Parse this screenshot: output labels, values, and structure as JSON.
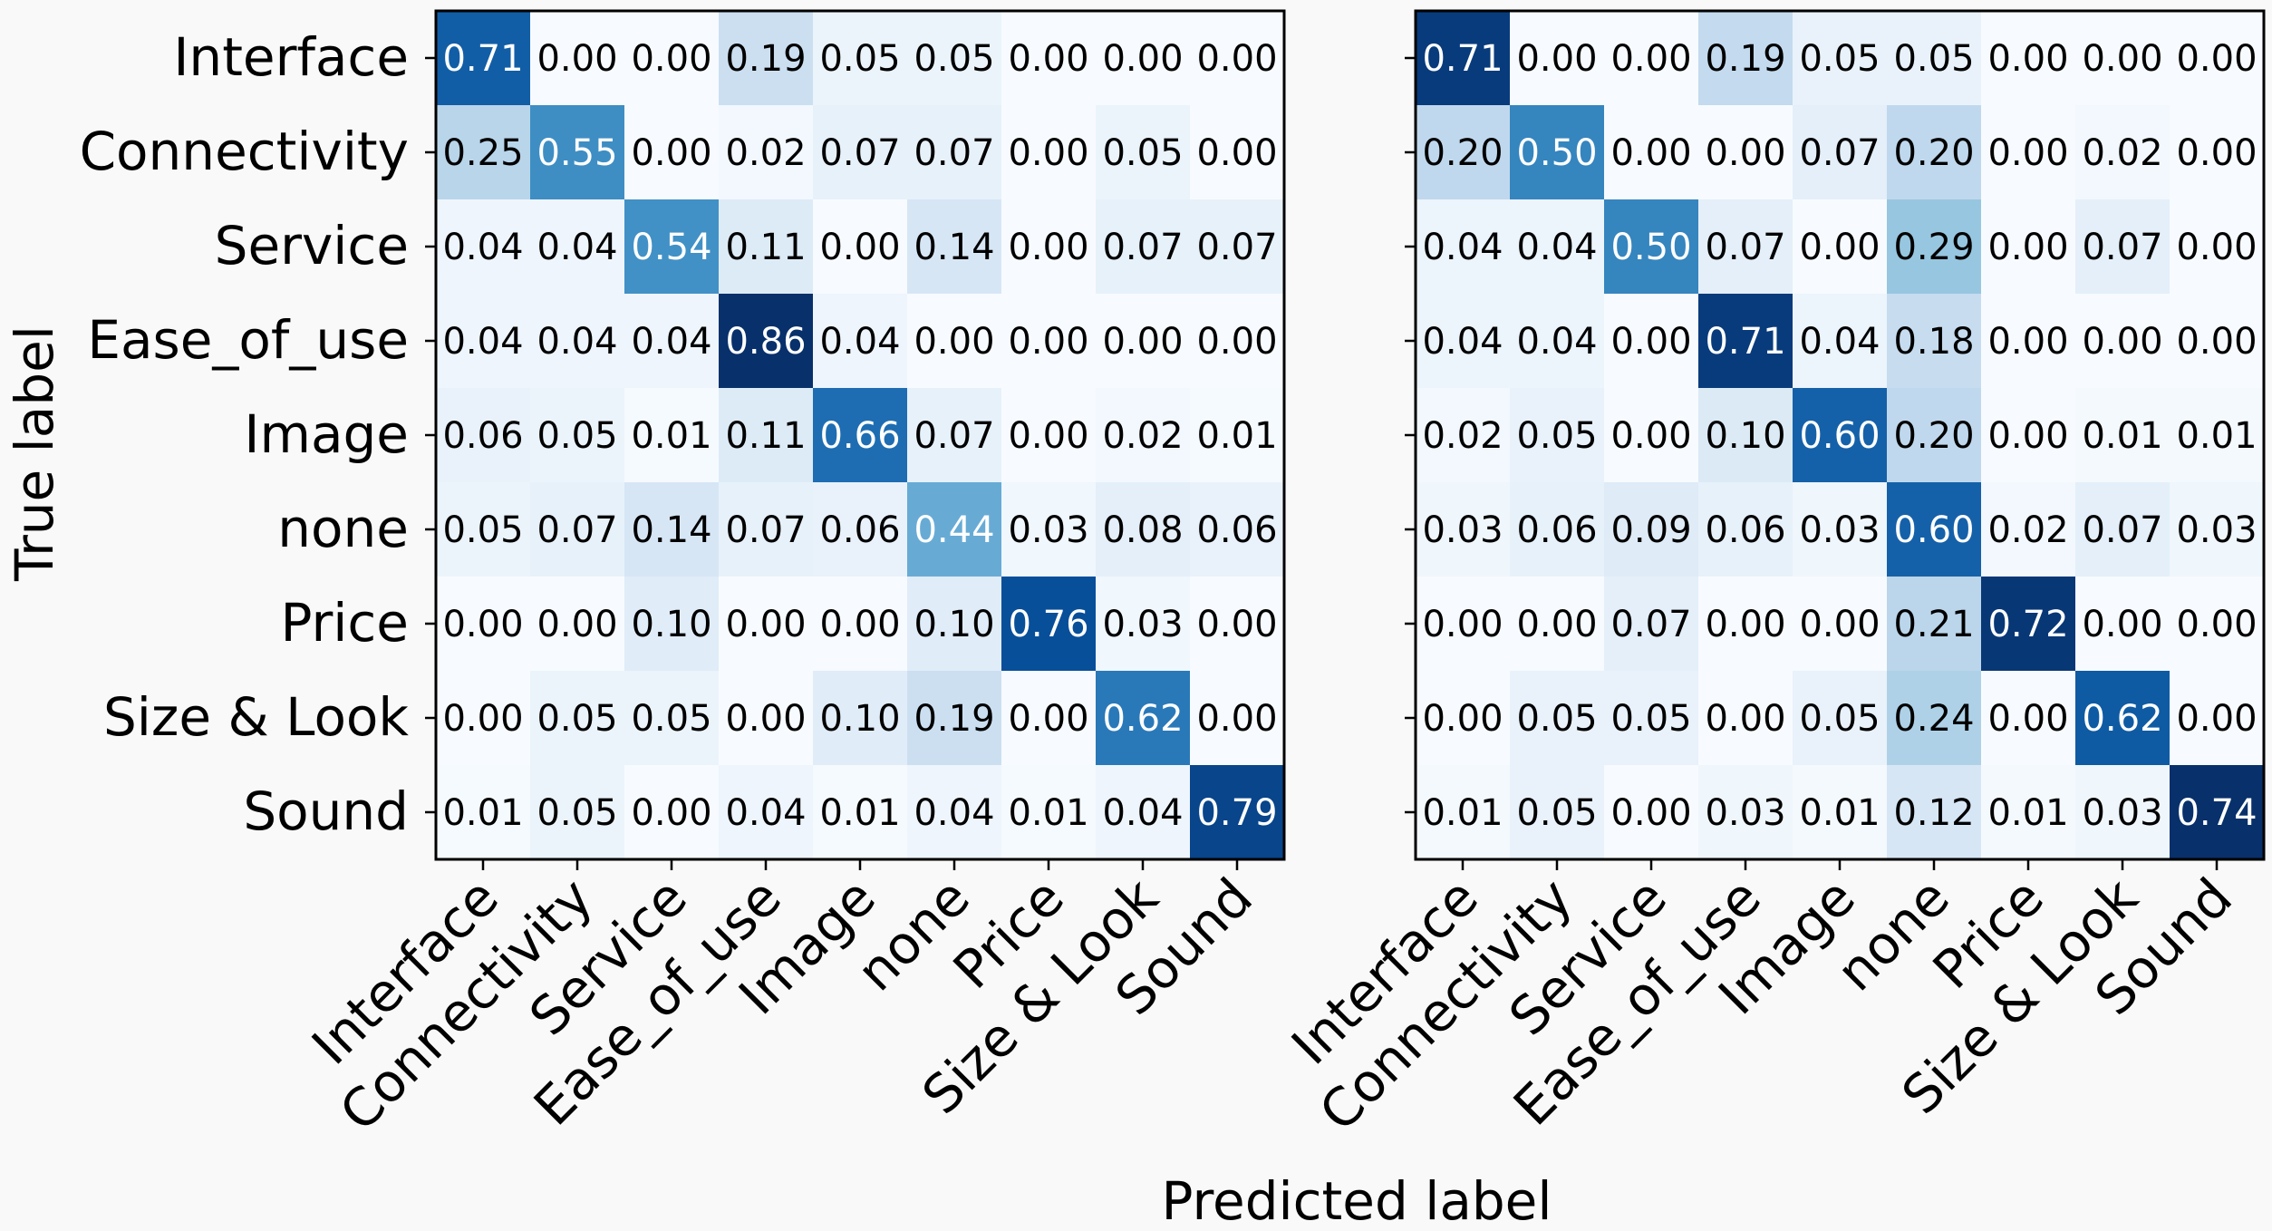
{
  "chart_data": [
    {
      "type": "heatmap",
      "title": "",
      "xlabel": "Predicted label",
      "ylabel": "True label",
      "x_categories": [
        "Interface",
        "Connectivity",
        "Service",
        "Ease_of_use",
        "Image",
        "none",
        "Price",
        "Size & Look",
        "Sound"
      ],
      "y_categories": [
        "Interface",
        "Connectivity",
        "Service",
        "Ease_of_use",
        "Image",
        "none",
        "Price",
        "Size & Look",
        "Sound"
      ],
      "colormap": "Blues",
      "values": [
        [
          0.71,
          0.0,
          0.0,
          0.19,
          0.05,
          0.05,
          0.0,
          0.0,
          0.0
        ],
        [
          0.25,
          0.55,
          0.0,
          0.02,
          0.07,
          0.07,
          0.0,
          0.05,
          0.0
        ],
        [
          0.04,
          0.04,
          0.54,
          0.11,
          0.0,
          0.14,
          0.0,
          0.07,
          0.07
        ],
        [
          0.04,
          0.04,
          0.04,
          0.86,
          0.04,
          0.0,
          0.0,
          0.0,
          0.0
        ],
        [
          0.06,
          0.05,
          0.01,
          0.11,
          0.66,
          0.07,
          0.0,
          0.02,
          0.01
        ],
        [
          0.05,
          0.07,
          0.14,
          0.07,
          0.06,
          0.44,
          0.03,
          0.08,
          0.06
        ],
        [
          0.0,
          0.0,
          0.1,
          0.0,
          0.0,
          0.1,
          0.76,
          0.03,
          0.0
        ],
        [
          0.0,
          0.05,
          0.05,
          0.0,
          0.1,
          0.19,
          0.0,
          0.62,
          0.0
        ],
        [
          0.01,
          0.05,
          0.0,
          0.04,
          0.01,
          0.04,
          0.01,
          0.04,
          0.79
        ]
      ]
    },
    {
      "type": "heatmap",
      "title": "",
      "xlabel": "Predicted label",
      "ylabel": "",
      "x_categories": [
        "Interface",
        "Connectivity",
        "Service",
        "Ease_of_use",
        "Image",
        "none",
        "Price",
        "Size & Look",
        "Sound"
      ],
      "y_categories": [],
      "colormap": "Blues",
      "values": [
        [
          0.71,
          0.0,
          0.0,
          0.19,
          0.05,
          0.05,
          0.0,
          0.0,
          0.0
        ],
        [
          0.2,
          0.5,
          0.0,
          0.0,
          0.07,
          0.2,
          0.0,
          0.02,
          0.0
        ],
        [
          0.04,
          0.04,
          0.5,
          0.07,
          0.0,
          0.29,
          0.0,
          0.07,
          0.0
        ],
        [
          0.04,
          0.04,
          0.0,
          0.71,
          0.04,
          0.18,
          0.0,
          0.0,
          0.0
        ],
        [
          0.02,
          0.05,
          0.0,
          0.1,
          0.6,
          0.2,
          0.0,
          0.01,
          0.01
        ],
        [
          0.03,
          0.06,
          0.09,
          0.06,
          0.03,
          0.6,
          0.02,
          0.07,
          0.03
        ],
        [
          0.0,
          0.0,
          0.07,
          0.0,
          0.0,
          0.21,
          0.72,
          0.0,
          0.0
        ],
        [
          0.0,
          0.05,
          0.05,
          0.0,
          0.05,
          0.24,
          0.0,
          0.62,
          0.0
        ],
        [
          0.01,
          0.05,
          0.0,
          0.03,
          0.01,
          0.12,
          0.01,
          0.03,
          0.74
        ]
      ]
    }
  ]
}
